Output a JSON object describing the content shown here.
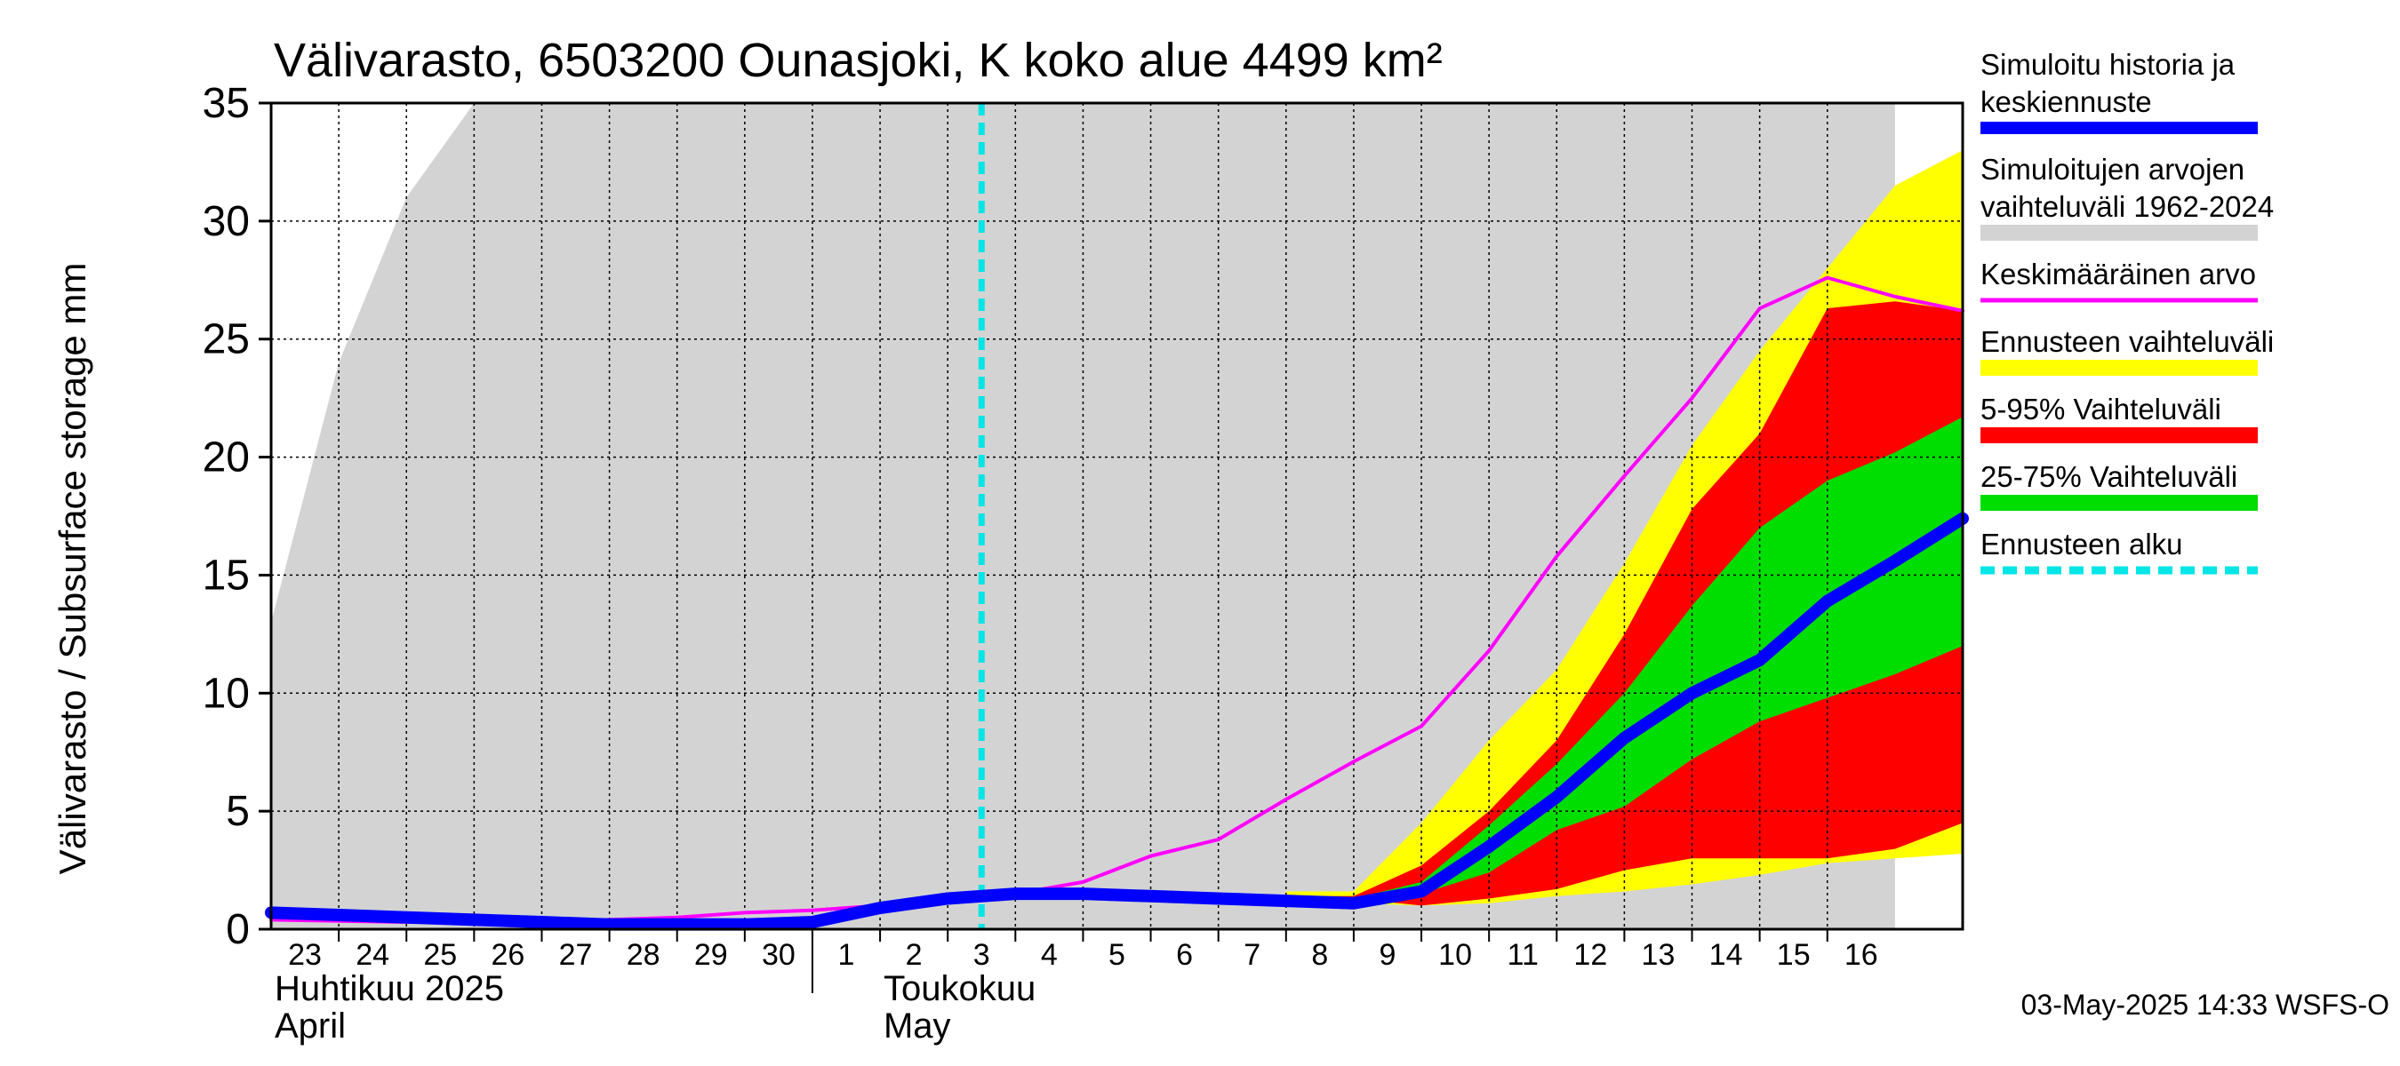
{
  "chart_data": {
    "type": "area",
    "title": "Välivarasto, 6503200 Ounasjoki, K koko alue 4499 km²",
    "ylabel": "Välivarasto / Subsurface storage  mm",
    "ylim": [
      0,
      35
    ],
    "yticks": [
      0,
      5,
      10,
      15,
      20,
      25,
      30,
      35
    ],
    "grid": true,
    "x_days": [
      "23",
      "24",
      "25",
      "26",
      "27",
      "28",
      "29",
      "30",
      "1",
      "2",
      "3",
      "4",
      "5",
      "6",
      "7",
      "8",
      "9",
      "10",
      "11",
      "12",
      "13",
      "14",
      "15",
      "16"
    ],
    "month_labels": [
      {
        "line1": "Huhtikuu  2025",
        "line2": "April",
        "start_day_index": 0
      },
      {
        "line1": "Toukokuu",
        "line2": "May",
        "start_day_index": 8
      }
    ],
    "forecast_start_day_index": 10,
    "series": [
      {
        "name": "Simuloitujen arvojen vaihteluväli 1962-2024",
        "color": "#d3d3d3",
        "upper": [
          [
            -0.5,
            13
          ],
          [
            0.5,
            24
          ],
          [
            1.5,
            31
          ],
          [
            2.5,
            35
          ],
          [
            23.5,
            35
          ]
        ],
        "lower": [
          [
            -0.5,
            0
          ],
          [
            23.5,
            0
          ]
        ]
      },
      {
        "name": "Ennusteen vaihteluväli",
        "color": "#ffff00",
        "upper": [
          [
            14.5,
            1.6
          ],
          [
            15.5,
            1.6
          ],
          [
            16.5,
            4.5
          ],
          [
            17.5,
            8
          ],
          [
            18.5,
            11
          ],
          [
            19.5,
            15.5
          ],
          [
            20.5,
            20.5
          ],
          [
            21.5,
            24.5
          ],
          [
            22.5,
            28
          ],
          [
            23.5,
            31.5
          ],
          [
            24.5,
            33
          ]
        ],
        "lower": [
          [
            14.5,
            1.3
          ],
          [
            15.5,
            1.1
          ],
          [
            16.5,
            1.0
          ],
          [
            17.5,
            1.1
          ],
          [
            18.5,
            1.4
          ],
          [
            19.5,
            1.6
          ],
          [
            20.5,
            1.9
          ],
          [
            21.5,
            2.3
          ],
          [
            22.5,
            2.8
          ],
          [
            23.5,
            3.0
          ],
          [
            24.5,
            3.2
          ]
        ]
      },
      {
        "name": "5-95% Vaihteluväli",
        "color": "#ff0000",
        "upper": [
          [
            14.5,
            1.4
          ],
          [
            15.5,
            1.4
          ],
          [
            16.5,
            2.7
          ],
          [
            17.5,
            5
          ],
          [
            18.5,
            8
          ],
          [
            19.5,
            12.5
          ],
          [
            20.5,
            17.8
          ],
          [
            21.5,
            21
          ],
          [
            22.5,
            26.3
          ],
          [
            23.5,
            26.6
          ],
          [
            24.5,
            26.2
          ]
        ],
        "lower": [
          [
            14.5,
            1.3
          ],
          [
            15.5,
            1.3
          ],
          [
            16.5,
            1.0
          ],
          [
            17.5,
            1.3
          ],
          [
            18.5,
            1.7
          ],
          [
            19.5,
            2.5
          ],
          [
            20.5,
            3.0
          ],
          [
            21.5,
            3.0
          ],
          [
            22.5,
            3.0
          ],
          [
            23.5,
            3.4
          ],
          [
            24.5,
            4.5
          ]
        ]
      },
      {
        "name": "25-75% Vaihteluväli",
        "color": "#00dd00",
        "upper": [
          [
            15.5,
            1.3
          ],
          [
            16.5,
            2.0
          ],
          [
            17.5,
            4.4
          ],
          [
            18.5,
            7
          ],
          [
            19.5,
            10
          ],
          [
            19.5,
            10
          ],
          [
            20.5,
            13.7
          ],
          [
            21.5,
            17
          ],
          [
            22.5,
            19
          ],
          [
            23.5,
            20.2
          ],
          [
            24.5,
            21.7
          ]
        ],
        "lower": [
          [
            15.5,
            1.3
          ],
          [
            16.5,
            1.5
          ],
          [
            17.5,
            2.4
          ],
          [
            18.5,
            4.2
          ],
          [
            19.5,
            5.2
          ],
          [
            20.5,
            7.2
          ],
          [
            21.5,
            8.8
          ],
          [
            22.5,
            9.8
          ],
          [
            23.5,
            10.8
          ],
          [
            24.5,
            12
          ]
        ]
      },
      {
        "name": "Keskimääräinen arvo",
        "color": "#ff00ff",
        "values": [
          [
            -0.5,
            0.4
          ],
          [
            0.5,
            0.35
          ],
          [
            1.5,
            0.3
          ],
          [
            2.5,
            0.3
          ],
          [
            3.5,
            0.35
          ],
          [
            4.5,
            0.4
          ],
          [
            5.5,
            0.5
          ],
          [
            6.5,
            0.7
          ],
          [
            7.5,
            0.8
          ],
          [
            8.5,
            1.0
          ],
          [
            9.5,
            1.3
          ],
          [
            10.5,
            1.5
          ],
          [
            11.5,
            2.0
          ],
          [
            12.5,
            3.1
          ],
          [
            13.5,
            3.8
          ],
          [
            14.5,
            5.5
          ],
          [
            15.5,
            7.1
          ],
          [
            16.5,
            8.6
          ],
          [
            17.5,
            11.8
          ],
          [
            18.5,
            15.8
          ],
          [
            19.5,
            19.2
          ],
          [
            20.5,
            22.5
          ],
          [
            21.5,
            26.3
          ],
          [
            22.5,
            27.6
          ],
          [
            23.5,
            26.8
          ],
          [
            24.5,
            26.2
          ]
        ]
      },
      {
        "name": "Simuloitu historia ja keskiennuste",
        "color": "#0000ff",
        "values": [
          [
            -0.5,
            0.7
          ],
          [
            0.5,
            0.6
          ],
          [
            1.5,
            0.5
          ],
          [
            2.5,
            0.4
          ],
          [
            3.5,
            0.3
          ],
          [
            4.5,
            0.2
          ],
          [
            5.5,
            0.2
          ],
          [
            6.5,
            0.2
          ],
          [
            7.5,
            0.3
          ],
          [
            8.5,
            0.9
          ],
          [
            9.5,
            1.3
          ],
          [
            10.5,
            1.5
          ],
          [
            11.5,
            1.5
          ],
          [
            12.5,
            1.4
          ],
          [
            13.5,
            1.3
          ],
          [
            14.5,
            1.2
          ],
          [
            15.5,
            1.1
          ],
          [
            16.5,
            1.6
          ],
          [
            17.5,
            3.5
          ],
          [
            18.5,
            5.6
          ],
          [
            19.5,
            8.1
          ],
          [
            20.5,
            10.0
          ],
          [
            21.5,
            11.4
          ],
          [
            22.5,
            13.9
          ],
          [
            23.5,
            15.6
          ],
          [
            24.5,
            17.4
          ]
        ]
      },
      {
        "name": "Ennusteen alku",
        "color": "#00e5e5"
      }
    ]
  },
  "legend": [
    {
      "lines": [
        "Simuloitu historia ja",
        "keskiennuste"
      ],
      "color": "#0000ff",
      "style": "thick"
    },
    {
      "lines": [
        "Simuloitujen arvojen",
        "vaihteluväli 1962-2024"
      ],
      "color": "#d3d3d3",
      "style": "band"
    },
    {
      "lines": [
        "Keskimääräinen arvo"
      ],
      "color": "#ff00ff",
      "style": "thin"
    },
    {
      "lines": [
        "Ennusteen vaihteluväli"
      ],
      "color": "#ffff00",
      "style": "band"
    },
    {
      "lines": [
        "5-95% Vaihteluväli"
      ],
      "color": "#ff0000",
      "style": "band"
    },
    {
      "lines": [
        "25-75% Vaihteluväli"
      ],
      "color": "#00dd00",
      "style": "band"
    },
    {
      "lines": [
        "Ennusteen alku"
      ],
      "color": "#00e5e5",
      "style": "dashed"
    }
  ],
  "footer": "03-May-2025 14:33 WSFS-O"
}
